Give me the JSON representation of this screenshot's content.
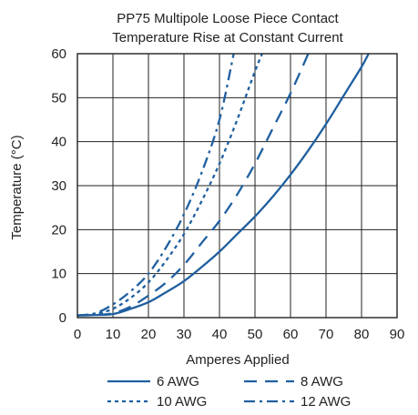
{
  "chart_data": {
    "type": "line",
    "title": "PP75 Multipole Loose Piece Contact",
    "subtitle": "Temperature Rise at Constant Current",
    "xlabel": "Amperes Applied",
    "ylabel": "Temperature (°C)",
    "xlim": [
      0,
      90
    ],
    "ylim": [
      0,
      60
    ],
    "x_ticks": [
      0,
      10,
      20,
      30,
      40,
      50,
      60,
      70,
      80,
      90
    ],
    "y_ticks": [
      0,
      10,
      20,
      30,
      40,
      50,
      60
    ],
    "grid": true,
    "legend_position": "bottom",
    "series_color": "#1f5fa0",
    "series": [
      {
        "name": "6  AWG",
        "style": "solid",
        "x": [
          0,
          5,
          10,
          15,
          20,
          25,
          30,
          35,
          40,
          45,
          50,
          55,
          60,
          65,
          70,
          75,
          80,
          82
        ],
        "y": [
          0.5,
          0.6,
          0.8,
          2,
          3.5,
          5.8,
          8.3,
          11.5,
          15,
          19,
          23,
          27.5,
          32.5,
          38,
          44,
          50.5,
          57,
          60
        ]
      },
      {
        "name": "8 AWG",
        "style": "dash",
        "x": [
          0,
          5,
          10,
          15,
          20,
          25,
          30,
          35,
          40,
          45,
          50,
          55,
          60,
          65
        ],
        "y": [
          0.5,
          0.6,
          1,
          2.5,
          5,
          8,
          12,
          17,
          22,
          28,
          35,
          43,
          51,
          60
        ]
      },
      {
        "name": "10 AWG",
        "style": "dot",
        "x": [
          0,
          5,
          10,
          15,
          20,
          25,
          30,
          35,
          40,
          45,
          50,
          52
        ],
        "y": [
          0.5,
          0.8,
          2,
          4.5,
          8,
          13,
          19,
          26.5,
          35,
          45,
          56,
          60
        ]
      },
      {
        "name": "12 AWG",
        "style": "dashdot",
        "x": [
          0,
          5,
          10,
          15,
          20,
          25,
          30,
          35,
          40,
          44
        ],
        "y": [
          0.5,
          1,
          3,
          6,
          10,
          16,
          23.5,
          33,
          45,
          60
        ]
      }
    ]
  }
}
